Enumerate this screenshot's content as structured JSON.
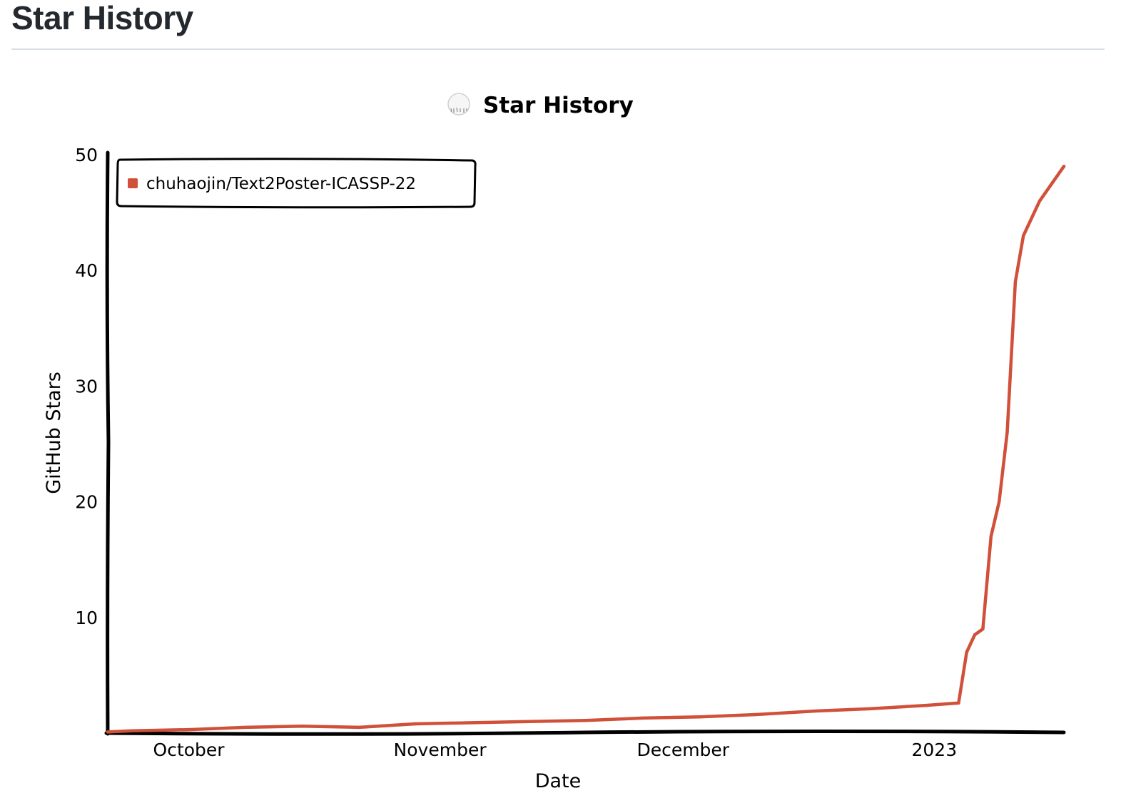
{
  "page": {
    "heading": "Star History"
  },
  "chart_data": {
    "type": "line",
    "title": "Star History",
    "xlabel": "Date",
    "ylabel": "GitHub Stars",
    "x_ticks": [
      {
        "label": "October",
        "date": "2022-10-01"
      },
      {
        "label": "November",
        "date": "2022-11-01"
      },
      {
        "label": "December",
        "date": "2022-12-01"
      },
      {
        "label": "2023",
        "date": "2023-01-01"
      }
    ],
    "y_ticks": [
      10,
      20,
      30,
      40,
      50
    ],
    "xlim": [
      "2022-09-21",
      "2023-01-17"
    ],
    "ylim": [
      0,
      50
    ],
    "legend_position": "top-left",
    "series": [
      {
        "name": "chuhaojin/Text2Poster-ICASSP-22",
        "color": "#d1503a",
        "points": [
          {
            "date": "2022-09-21",
            "stars": 0.1
          },
          {
            "date": "2022-09-24",
            "stars": 0.2
          },
          {
            "date": "2022-10-01",
            "stars": 0.3
          },
          {
            "date": "2022-10-08",
            "stars": 0.5
          },
          {
            "date": "2022-10-15",
            "stars": 0.6
          },
          {
            "date": "2022-10-22",
            "stars": 0.5
          },
          {
            "date": "2022-10-29",
            "stars": 0.8
          },
          {
            "date": "2022-11-05",
            "stars": 0.9
          },
          {
            "date": "2022-11-12",
            "stars": 1.0
          },
          {
            "date": "2022-11-19",
            "stars": 1.1
          },
          {
            "date": "2022-11-26",
            "stars": 1.3
          },
          {
            "date": "2022-12-03",
            "stars": 1.4
          },
          {
            "date": "2022-12-10",
            "stars": 1.6
          },
          {
            "date": "2022-12-17",
            "stars": 1.9
          },
          {
            "date": "2022-12-24",
            "stars": 2.1
          },
          {
            "date": "2022-12-31",
            "stars": 2.4
          },
          {
            "date": "2023-01-04",
            "stars": 2.6
          },
          {
            "date": "2023-01-05",
            "stars": 7.0
          },
          {
            "date": "2023-01-06",
            "stars": 8.5
          },
          {
            "date": "2023-01-07",
            "stars": 9.0
          },
          {
            "date": "2023-01-08",
            "stars": 17.0
          },
          {
            "date": "2023-01-09",
            "stars": 20.0
          },
          {
            "date": "2023-01-10",
            "stars": 26.0
          },
          {
            "date": "2023-01-11",
            "stars": 39.0
          },
          {
            "date": "2023-01-12",
            "stars": 43.0
          },
          {
            "date": "2023-01-14",
            "stars": 46.0
          },
          {
            "date": "2023-01-17",
            "stars": 49.0
          }
        ]
      }
    ]
  }
}
